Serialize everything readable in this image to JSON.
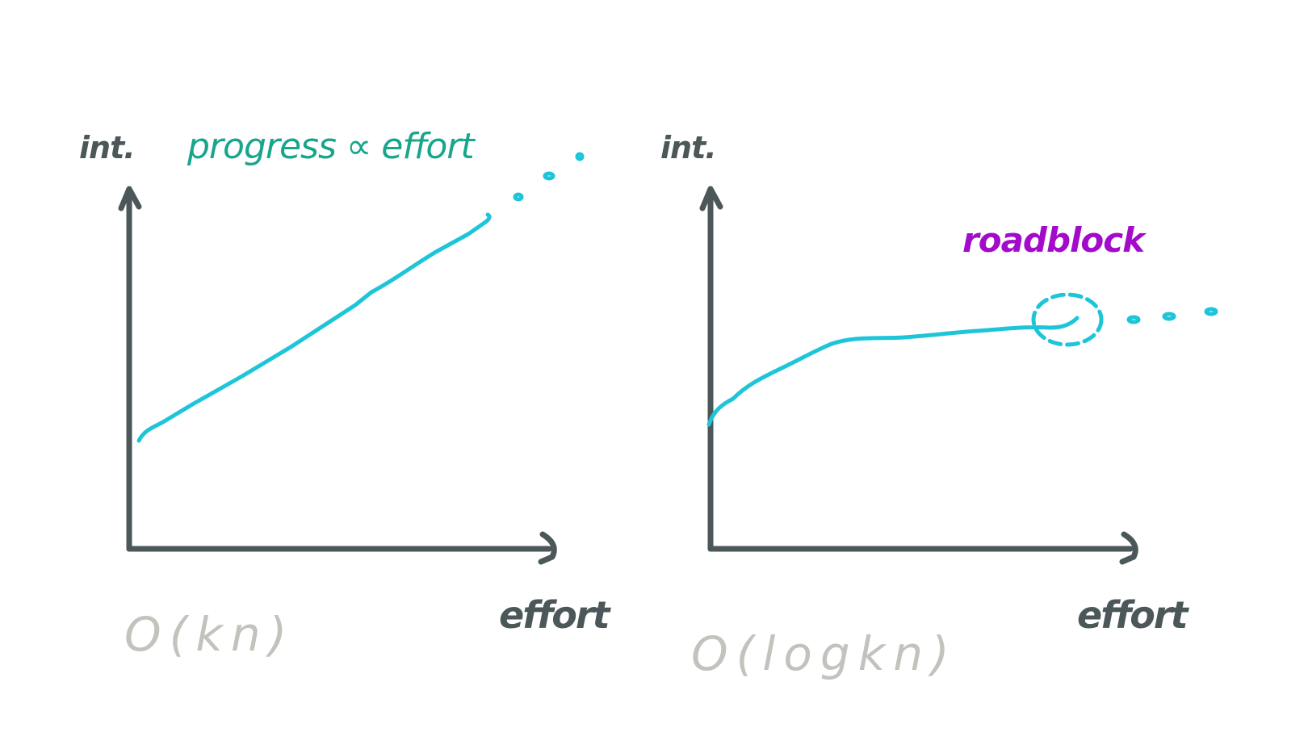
{
  "colors": {
    "axis": "#4b5758",
    "curve": "#1ec5d8",
    "title": "#17a58c",
    "roadblock": "#a30bcb",
    "complexity": "#c4c2bd",
    "background": "#ffffff"
  },
  "left_chart": {
    "ylabel": "int.",
    "xlabel": "effort",
    "title": "progress ∝ effort",
    "complexity": "O(kn)",
    "curve_shape": "linear",
    "continues": true
  },
  "right_chart": {
    "ylabel": "int.",
    "xlabel": "effort",
    "annotation": "roadblock",
    "complexity": "O(logkn)",
    "curve_shape": "logarithmic",
    "continues": true,
    "roadblock_marker": "dashed-circle"
  }
}
